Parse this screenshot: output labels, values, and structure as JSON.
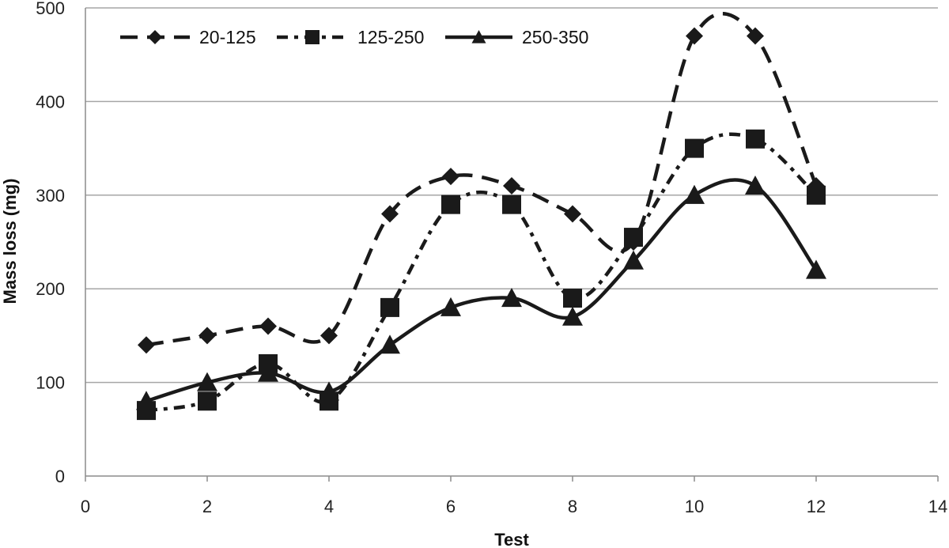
{
  "chart_data": {
    "type": "line",
    "title": "",
    "xlabel": "Test",
    "ylabel": "Mass loss (mg)",
    "xlim": [
      0,
      14
    ],
    "ylim": [
      0,
      500
    ],
    "xticks": [
      "0",
      "2",
      "4",
      "6",
      "8",
      "10",
      "12",
      "14"
    ],
    "yticks": [
      "0",
      "100",
      "200",
      "300",
      "400",
      "500"
    ],
    "grid": "horizontal",
    "legend_position": "top-left",
    "x": [
      1,
      2,
      3,
      4,
      5,
      6,
      7,
      8,
      9,
      10,
      11,
      12
    ],
    "series": [
      {
        "name": "20-125",
        "marker": "diamond",
        "line_style": "dashed",
        "color": "#1a1a1a",
        "values": [
          140,
          150,
          160,
          150,
          280,
          320,
          310,
          280,
          250,
          470,
          470,
          310
        ]
      },
      {
        "name": "125-250",
        "marker": "square",
        "line_style": "dash-dot",
        "color": "#1a1a1a",
        "values": [
          70,
          80,
          120,
          80,
          180,
          290,
          290,
          190,
          255,
          350,
          360,
          300
        ]
      },
      {
        "name": "250-350",
        "marker": "triangle",
        "line_style": "solid",
        "color": "#1a1a1a",
        "values": [
          80,
          100,
          110,
          90,
          140,
          180,
          190,
          170,
          230,
          300,
          310,
          220
        ]
      }
    ]
  }
}
